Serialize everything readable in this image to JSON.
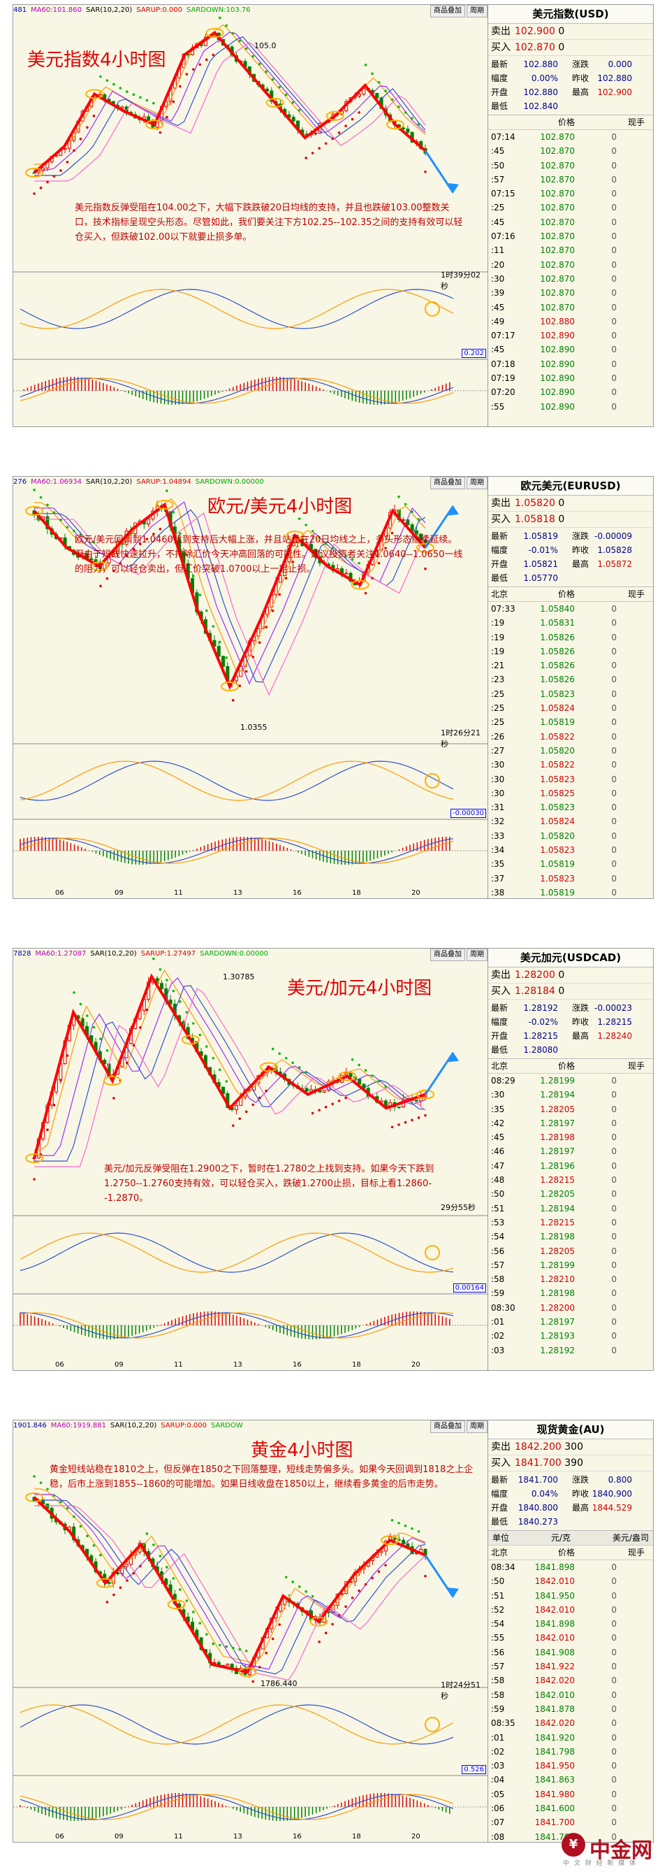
{
  "panels": [
    {
      "title_overlay": "美元指数4小时图",
      "indicator_labels": [
        "481",
        "MA60:101.860",
        "SAR(10,2,20)",
        "SARUP:0.000",
        "SARDOWN:103.76"
      ],
      "buttons": [
        "商品叠加",
        "周期"
      ],
      "price_marks": [
        "105.0"
      ],
      "note": "美元指数反弹受阻在104.00之下，大幅下跌跌破20日均线的支持，并且也跌破103.00整数关口，技术指标呈现空头形态。尽管如此，我们要关注下方102.25--102.35之间的支持有效可以轻仓买入，但跌破102.00以下就要止损多单。",
      "timer": "1时39分02秒",
      "macd_value": "0.202",
      "quote": {
        "title": "美元指数(USD)",
        "sell_label": "卖出",
        "sell": "102.900",
        "sell_vol": "0",
        "buy_label": "买入",
        "buy": "102.870",
        "buy_vol": "0",
        "grid": [
          [
            "最新",
            "102.880",
            "涨跌",
            "0.000"
          ],
          [
            "幅度",
            "0.00%",
            "昨收",
            "102.880"
          ],
          [
            "开盘",
            "102.880",
            "最高",
            "102.900"
          ],
          [
            "最低",
            "102.840",
            "",
            ""
          ]
        ],
        "ticks_header": [
          "",
          "价格",
          "",
          "现手"
        ],
        "ticks": [
          [
            "07:14",
            "102.870",
            "0"
          ],
          [
            ":45",
            "102.870",
            "0"
          ],
          [
            ":50",
            "102.870",
            "0"
          ],
          [
            ":57",
            "102.870",
            "0"
          ],
          [
            "07:15",
            "102.870",
            "0"
          ],
          [
            ":25",
            "102.870",
            "0"
          ],
          [
            ":45",
            "102.870",
            "0"
          ],
          [
            "07:16",
            "102.870",
            "0"
          ],
          [
            ":11",
            "102.870",
            "0"
          ],
          [
            ":20",
            "102.870",
            "0"
          ],
          [
            ":30",
            "102.870",
            "0"
          ],
          [
            ":39",
            "102.870",
            "0"
          ],
          [
            ":45",
            "102.870",
            "0"
          ],
          [
            ":49",
            "102.880",
            "0"
          ],
          [
            "07:17",
            "102.890",
            "0"
          ],
          [
            ":45",
            "102.890",
            "0"
          ],
          [
            "07:18",
            "102.890",
            "0"
          ],
          [
            "07:19",
            "102.890",
            "0"
          ],
          [
            "07:20",
            "102.890",
            "0"
          ],
          [
            ":55",
            "102.890",
            "0"
          ]
        ]
      },
      "x_labels": []
    },
    {
      "title_overlay": "欧元/美元4小时图",
      "indicator_labels": [
        "276",
        "MA60:1.06934",
        "SAR(10,2,20)",
        "SARUP:1.04894",
        "SARDOWN:0.00000"
      ],
      "buttons": [
        "商品叠加",
        "周期"
      ],
      "price_marks": [
        "1.0355"
      ],
      "note": "欧元/美元回调到1.0460找到支持后大幅上涨，并且站稳在20日均线之上，多头形态继续延续。但由于短线快速拉升，不排除汇价今天冲高回落的可能性。建议投资者关注1.0640--1.0650一线的阻力，可以轻仓卖出，但汇价突破1.0700以上一定止损。",
      "timer": "1时26分21秒",
      "macd_value": "-0.00030",
      "quote": {
        "title": "欧元美元(EURUSD)",
        "sell_label": "卖出",
        "sell": "1.05820",
        "sell_vol": "0",
        "buy_label": "买入",
        "buy": "1.05818",
        "buy_vol": "0",
        "grid": [
          [
            "最新",
            "1.05819",
            "涨跌",
            "-0.00009"
          ],
          [
            "幅度",
            "-0.01%",
            "昨收",
            "1.05828"
          ],
          [
            "开盘",
            "1.05821",
            "最高",
            "1.05872"
          ],
          [
            "最低",
            "1.05770",
            "",
            ""
          ]
        ],
        "ticks_header": [
          "北京",
          "价格",
          "",
          "现手"
        ],
        "ticks": [
          [
            "07:33",
            "1.05840",
            "0"
          ],
          [
            ":19",
            "1.05831",
            "0"
          ],
          [
            ":19",
            "1.05826",
            "0"
          ],
          [
            ":19",
            "1.05826",
            "0"
          ],
          [
            ":21",
            "1.05826",
            "0"
          ],
          [
            ":23",
            "1.05826",
            "0"
          ],
          [
            ":25",
            "1.05823",
            "0"
          ],
          [
            ":25",
            "1.05824",
            "0"
          ],
          [
            ":25",
            "1.05819",
            "0"
          ],
          [
            ":26",
            "1.05822",
            "0"
          ],
          [
            ":27",
            "1.05820",
            "0"
          ],
          [
            ":30",
            "1.05822",
            "0"
          ],
          [
            ":30",
            "1.05823",
            "0"
          ],
          [
            ":30",
            "1.05825",
            "0"
          ],
          [
            ":31",
            "1.05823",
            "0"
          ],
          [
            ":32",
            "1.05824",
            "0"
          ],
          [
            ":33",
            "1.05820",
            "0"
          ],
          [
            ":34",
            "1.05823",
            "0"
          ],
          [
            ":35",
            "1.05819",
            "0"
          ],
          [
            ":37",
            "1.05823",
            "0"
          ],
          [
            ":38",
            "1.05819",
            "0"
          ]
        ]
      },
      "x_labels": [
        "06",
        "09",
        "11",
        "13",
        "16",
        "18",
        "20"
      ]
    },
    {
      "title_overlay": "美元/加元4小时图",
      "indicator_labels": [
        "7828",
        "MA60:1.27087",
        "SAR(10,2,20)",
        "SARUP:1.27497",
        "SARDOWN:0.00000"
      ],
      "buttons": [
        "商品叠加",
        "周期"
      ],
      "price_marks": [
        "1.30785"
      ],
      "note": "美元/加元反弹受阻在1.2900之下，暂时在1.2780之上找到支持。如果今天下跌到1.2750--1.2760支持有效，可以轻仓买入，跌破1.2700止损，目标上看1.2860--1.2870。",
      "timer": "29分55秒",
      "macd_value": "0.00164",
      "quote": {
        "title": "美元加元(USDCAD)",
        "sell_label": "卖出",
        "sell": "1.28200",
        "sell_vol": "0",
        "buy_label": "买入",
        "buy": "1.28184",
        "buy_vol": "0",
        "grid": [
          [
            "最新",
            "1.28192",
            "涨跌",
            "-0.00023"
          ],
          [
            "幅度",
            "-0.02%",
            "昨收",
            "1.28215"
          ],
          [
            "开盘",
            "1.28215",
            "最高",
            "1.28240"
          ],
          [
            "最低",
            "1.28080",
            "",
            ""
          ]
        ],
        "ticks_header": [
          "北京",
          "价格",
          "",
          "现手"
        ],
        "ticks": [
          [
            "08:29",
            "1.28199",
            "0"
          ],
          [
            ":30",
            "1.28194",
            "0"
          ],
          [
            ":35",
            "1.28205",
            "0"
          ],
          [
            ":42",
            "1.28197",
            "0"
          ],
          [
            ":45",
            "1.28198",
            "0"
          ],
          [
            ":46",
            "1.28197",
            "0"
          ],
          [
            ":47",
            "1.28196",
            "0"
          ],
          [
            ":48",
            "1.28215",
            "0"
          ],
          [
            ":50",
            "1.28205",
            "0"
          ],
          [
            ":51",
            "1.28194",
            "0"
          ],
          [
            ":53",
            "1.28215",
            "0"
          ],
          [
            ":54",
            "1.28198",
            "0"
          ],
          [
            ":56",
            "1.28205",
            "0"
          ],
          [
            ":57",
            "1.28199",
            "0"
          ],
          [
            ":58",
            "1.28210",
            "0"
          ],
          [
            ":59",
            "1.28198",
            "0"
          ],
          [
            "08:30",
            "1.28200",
            "0"
          ],
          [
            ":01",
            "1.28197",
            "0"
          ],
          [
            ":02",
            "1.28193",
            "0"
          ],
          [
            ":03",
            "1.28192",
            "0"
          ]
        ]
      },
      "x_labels": [
        "06",
        "09",
        "11",
        "13",
        "16",
        "18",
        "20"
      ]
    },
    {
      "title_overlay": "黄金4小时图",
      "indicator_labels": [
        "1901.846",
        "MA60:1919.881",
        "SAR(10,2,20)",
        "SARUP:0.000",
        "SARDOW"
      ],
      "buttons": [
        "商品叠加",
        "周期"
      ],
      "price_marks": [
        "1786.440"
      ],
      "note": "黄金短线站稳在1810之上，但反弹在1850之下回落整理，短线走势偏多头。如果今天回调到1818之上企稳，后市上涨到1855--1860的可能增加。如果日线收盘在1850以上，继续看多黄金的后市走势。",
      "timer": "1时24分51秒",
      "macd_value": "0.526",
      "quote": {
        "title": "现货黄金(AU)",
        "sell_label": "卖出",
        "sell": "1842.200",
        "sell_vol": "300",
        "buy_label": "买入",
        "buy": "1841.700",
        "buy_vol": "390",
        "grid": [
          [
            "最新",
            "1841.700",
            "涨跌",
            "0.800"
          ],
          [
            "幅度",
            "0.04%",
            "昨收",
            "1840.900"
          ],
          [
            "开盘",
            "1840.800",
            "最高",
            "1844.529"
          ],
          [
            "最低",
            "1840.273",
            "",
            ""
          ]
        ],
        "unit_row": [
          "单位",
          "元/克",
          "美元/盎司"
        ],
        "ticks_header": [
          "北京",
          "价格",
          "",
          "现手"
        ],
        "ticks": [
          [
            "08:34",
            "1841.898",
            "0"
          ],
          [
            ":50",
            "1842.010",
            "0"
          ],
          [
            ":51",
            "1841.950",
            "0"
          ],
          [
            ":52",
            "1842.010",
            "0"
          ],
          [
            ":54",
            "1841.898",
            "0"
          ],
          [
            ":55",
            "1842.010",
            "0"
          ],
          [
            ":56",
            "1841.908",
            "0"
          ],
          [
            ":57",
            "1841.922",
            "0"
          ],
          [
            ":58",
            "1842.020",
            "0"
          ],
          [
            ":58",
            "1842.010",
            "0"
          ],
          [
            ":59",
            "1841.878",
            "0"
          ],
          [
            "08:35",
            "1842.020",
            "0"
          ],
          [
            ":01",
            "1841.920",
            "0"
          ],
          [
            ":02",
            "1841.798",
            "0"
          ],
          [
            ":03",
            "1841.950",
            "0"
          ],
          [
            ":04",
            "1841.863",
            "0"
          ],
          [
            ":05",
            "1841.980",
            "0"
          ],
          [
            ":06",
            "1841.600",
            "0"
          ],
          [
            ":07",
            "1841.700",
            "0"
          ],
          [
            ":08",
            "1841.700",
            "0"
          ]
        ]
      },
      "x_labels": [
        "06",
        "09",
        "11",
        "13",
        "16",
        "18",
        "20"
      ]
    }
  ],
  "chart_data": [
    {
      "type": "line",
      "title": "美元指数4小时图",
      "x_labels": [],
      "series": [
        {
          "values": [
            101.8,
            102.4,
            103.6,
            103.2,
            102.9,
            104.5,
            105.0,
            104.2,
            103.4,
            102.6,
            103.1,
            103.8,
            102.9,
            102.3
          ]
        }
      ]
    },
    {
      "type": "line",
      "title": "欧元/美元4小时图",
      "x_labels": [
        "06",
        "09",
        "11",
        "13",
        "16",
        "18",
        "20"
      ],
      "series": [
        {
          "values": [
            1.064,
            1.058,
            1.055,
            1.061,
            1.065,
            1.048,
            1.0355,
            1.047,
            1.06,
            1.055,
            1.052,
            1.064,
            1.058
          ]
        }
      ]
    },
    {
      "type": "line",
      "title": "美元/加元4小时图",
      "x_labels": [
        "06",
        "09",
        "11",
        "13",
        "16",
        "18",
        "20"
      ],
      "series": [
        {
          "values": [
            1.268,
            1.3,
            1.285,
            1.30785,
            1.294,
            1.279,
            1.288,
            1.282,
            1.286,
            1.279,
            1.282
          ]
        }
      ]
    },
    {
      "type": "line",
      "title": "黄金4小时图",
      "x_labels": [
        "06",
        "09",
        "11",
        "13",
        "16",
        "18",
        "20"
      ],
      "series": [
        {
          "values": [
            1868,
            1852,
            1828,
            1846,
            1818,
            1790,
            1786.44,
            1822,
            1810,
            1832,
            1848,
            1841
          ]
        }
      ]
    }
  ],
  "logo": {
    "name": "中金网",
    "sub": "中 文 财 经 新 媒 体"
  }
}
